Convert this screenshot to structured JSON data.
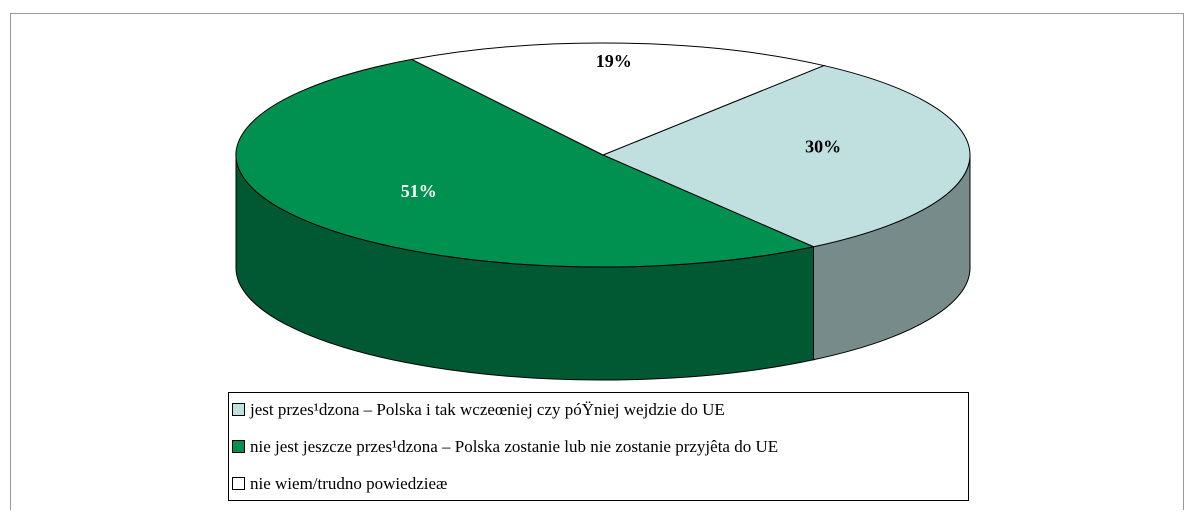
{
  "chart_data": {
    "type": "pie",
    "categories": [
      "jest przes¹dzona – Polska i tak wczeœniej czy póŸniej wejdzie do UE",
      "nie jest jeszcze przes¹dzona – Polska zostanie lub nie zostanie przyjêta do UE",
      "nie wiem/trudno powiedzieæ"
    ],
    "values": [
      30,
      51,
      19
    ],
    "value_labels": [
      "30%",
      "51%",
      "19%"
    ],
    "colors": [
      "#c0e0e0",
      "#009050",
      "#ffffff"
    ],
    "legend": "bottom"
  }
}
